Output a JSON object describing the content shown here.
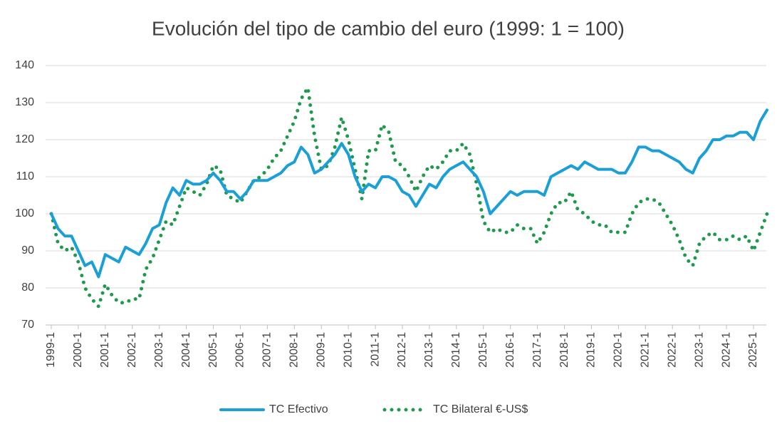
{
  "chart_data": {
    "type": "line",
    "title": "Evolución del tipo de cambio del euro (1999: 1 = 100)",
    "categories": [
      "1999-1",
      null,
      null,
      null,
      "2000-1",
      null,
      null,
      null,
      "2001-1",
      null,
      null,
      null,
      "2002-1",
      null,
      null,
      null,
      "2003-1",
      null,
      null,
      null,
      "2004-1",
      null,
      null,
      null,
      "2005-1",
      null,
      null,
      null,
      "2006-1",
      null,
      null,
      null,
      "2007-1",
      null,
      null,
      null,
      "2008-1",
      null,
      null,
      null,
      "2009-1",
      null,
      null,
      null,
      "2010-1",
      null,
      null,
      null,
      "2011-1",
      null,
      null,
      null,
      "2012-1",
      null,
      null,
      null,
      "2013-1",
      null,
      null,
      null,
      "2014-1",
      null,
      null,
      null,
      "2015-1",
      null,
      null,
      null,
      "2016-1",
      null,
      null,
      null,
      "2017-1",
      null,
      null,
      null,
      "2018-1",
      null,
      null,
      null,
      "2019-1",
      null,
      null,
      null,
      "2020-1",
      null,
      null,
      null,
      "2021-1",
      null,
      null,
      null,
      "2022-1",
      null,
      null,
      null,
      "2023-1",
      null,
      null,
      null,
      "2024-1",
      null,
      null,
      null,
      "2025-1",
      null,
      null
    ],
    "series": [
      {
        "name": "TC Efectivo",
        "color": "#1a9fd6",
        "style": "solid",
        "values": [
          100,
          96,
          94,
          94,
          90,
          86,
          87,
          83,
          89,
          88,
          87,
          91,
          90,
          89,
          92,
          96,
          97,
          103,
          107,
          105,
          109,
          108,
          108,
          109,
          111,
          109,
          106,
          106,
          104,
          106,
          109,
          109,
          109,
          110,
          111,
          113,
          114,
          118,
          116,
          111,
          112,
          114,
          116,
          119,
          116,
          110,
          106,
          108,
          107,
          110,
          110,
          109,
          106,
          105,
          102,
          105,
          108,
          107,
          110,
          112,
          113,
          114,
          112,
          110,
          106,
          100,
          102,
          104,
          106,
          105,
          106,
          106,
          106,
          105,
          110,
          111,
          112,
          113,
          112,
          114,
          113,
          112,
          112,
          112,
          111,
          111,
          114,
          118,
          118,
          117,
          117,
          116,
          115,
          114,
          112,
          111,
          115,
          117,
          120,
          120,
          121,
          121,
          122,
          122,
          120,
          125,
          128
        ]
      },
      {
        "name": "TC Bilateral €-US$",
        "color": "#1e9a4c",
        "style": "dotted",
        "values": [
          100,
          92,
          90,
          91,
          87,
          80,
          77,
          75,
          81,
          78,
          76,
          76,
          77,
          77,
          85,
          88,
          93,
          98,
          97,
          102,
          107,
          106,
          105,
          108,
          113,
          112,
          105,
          104,
          103,
          106,
          109,
          110,
          112,
          115,
          117,
          121,
          125,
          131,
          134,
          121,
          112,
          113,
          118,
          126,
          120,
          112,
          104,
          117,
          117,
          124,
          122,
          114,
          113,
          110,
          106,
          110,
          113,
          112,
          114,
          117,
          117,
          119,
          116,
          108,
          98,
          95,
          96,
          95,
          95,
          97,
          96,
          96,
          92,
          95,
          100,
          103,
          103,
          106,
          101,
          100,
          98,
          97,
          97,
          95,
          95,
          95,
          100,
          103,
          104,
          104,
          103,
          100,
          97,
          93,
          88,
          86,
          92,
          94,
          95,
          93,
          93,
          94,
          93,
          94,
          90,
          95,
          100
        ]
      }
    ],
    "ylim": [
      70,
      140
    ],
    "yticks": [
      70,
      80,
      90,
      100,
      110,
      120,
      130,
      140
    ],
    "grid": true,
    "legend": "bottom"
  }
}
